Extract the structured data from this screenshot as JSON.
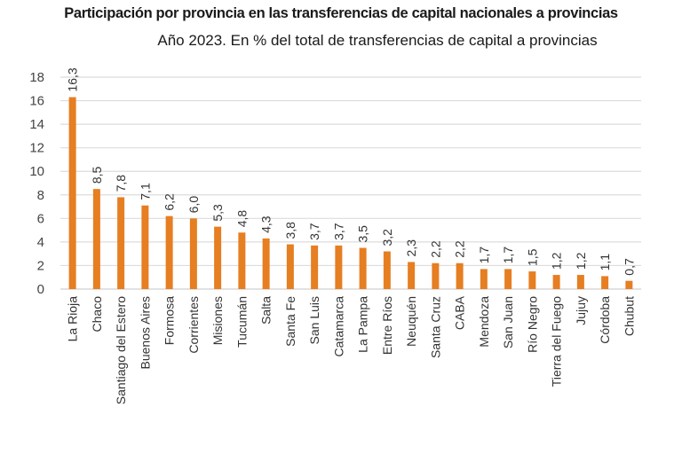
{
  "chart_data": {
    "type": "bar",
    "title": "Participación por provincia en las transferencias de capital nacionales a provincias",
    "subtitle": "Año 2023. En % del total de transferencias de capital a provincias",
    "xlabel": "",
    "ylabel": "",
    "ylim": [
      0,
      18
    ],
    "yticks": [
      0,
      2,
      4,
      6,
      8,
      10,
      12,
      14,
      16,
      18
    ],
    "grid": true,
    "legend": "none",
    "bar_color": "#E67E22",
    "categories": [
      "La Rioja",
      "Chaco",
      "Santiago del Estero",
      "Buenos Aires",
      "Formosa",
      "Corrientes",
      "Misiones",
      "Tucumán",
      "Salta",
      "Santa Fe",
      "San Luis",
      "Catamarca",
      "La Pampa",
      "Entre Ríos",
      "Neuquén",
      "Santa Cruz",
      "CABA",
      "Mendoza",
      "San Juan",
      "Río Negro",
      "Tierra del Fuego",
      "Jujuy",
      "Córdoba",
      "Chubut"
    ],
    "values": [
      16.3,
      8.5,
      7.8,
      7.1,
      6.2,
      6.0,
      5.3,
      4.8,
      4.3,
      3.8,
      3.7,
      3.7,
      3.5,
      3.2,
      2.3,
      2.2,
      2.2,
      1.7,
      1.7,
      1.5,
      1.2,
      1.2,
      1.1,
      0.7
    ],
    "data_labels": [
      "16,3",
      "8,5",
      "7,8",
      "7,1",
      "6,2",
      "6,0",
      "5,3",
      "4,8",
      "4,3",
      "3,8",
      "3,7",
      "3,7",
      "3,5",
      "3,2",
      "2,3",
      "2,2",
      "2,2",
      "1,7",
      "1,7",
      "1,5",
      "1,2",
      "1,2",
      "1,1",
      "0,7"
    ]
  }
}
